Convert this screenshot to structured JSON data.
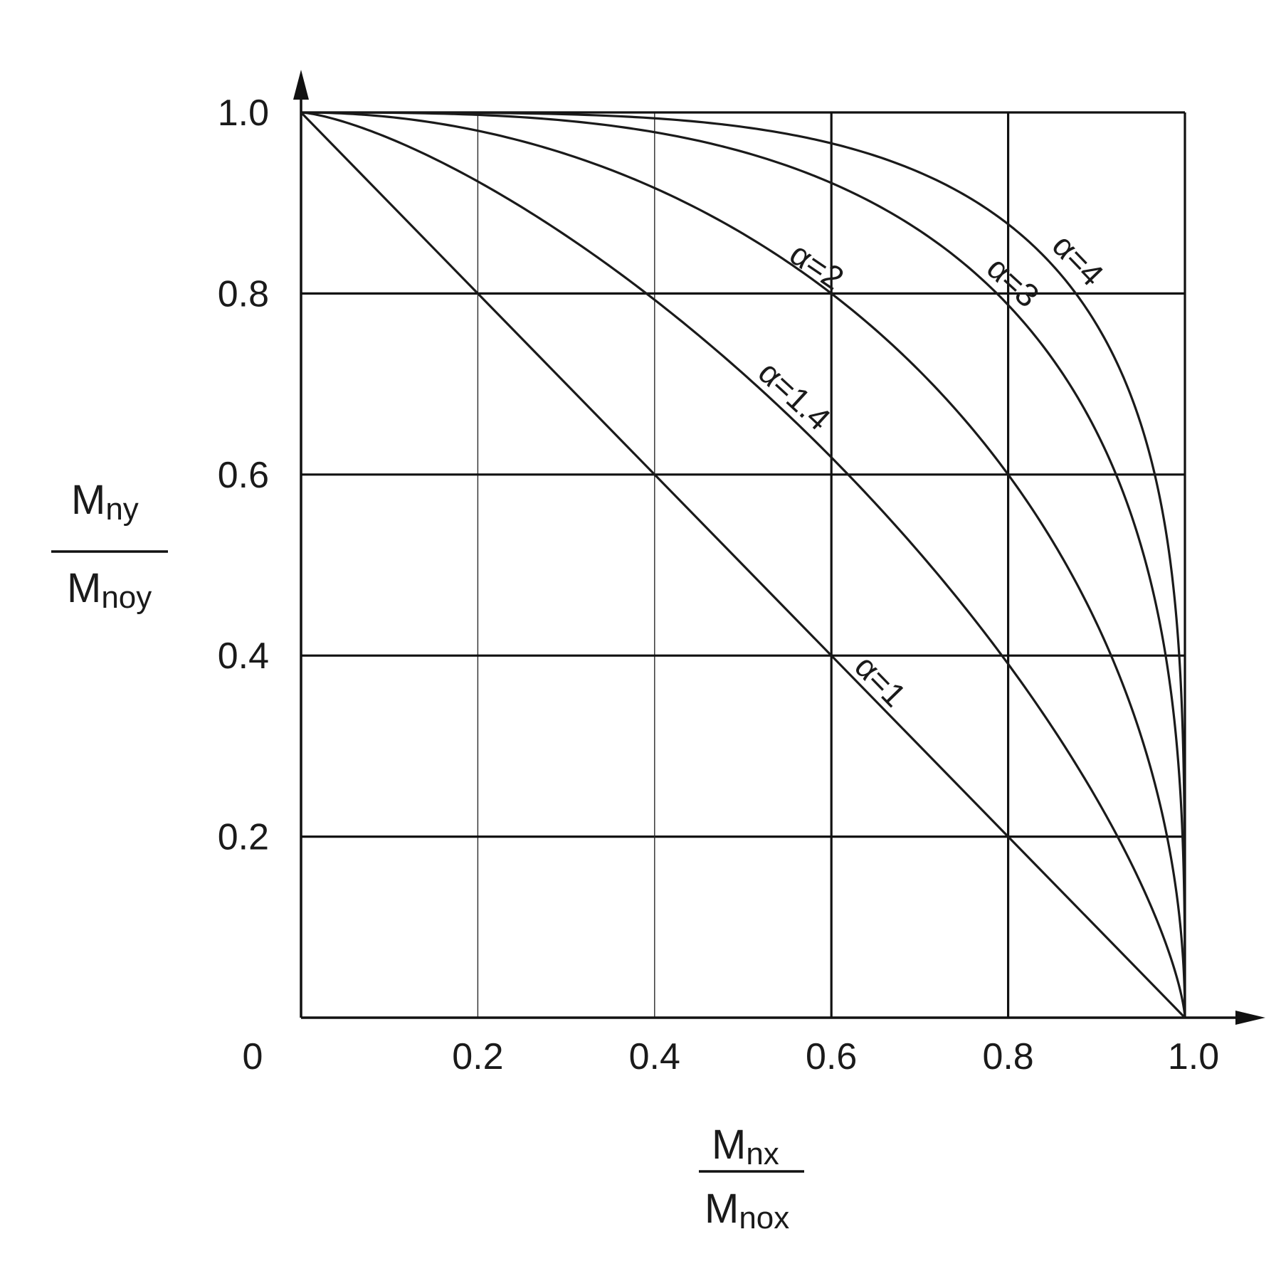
{
  "chart_data": {
    "type": "line",
    "xlim": [
      0,
      1
    ],
    "ylim": [
      0,
      1
    ],
    "x_ticks": [
      "0.2",
      "0.4",
      "0.6",
      "0.8",
      "1.0"
    ],
    "y_ticks": [
      "0.2",
      "0.4",
      "0.6",
      "0.8",
      "1.0"
    ],
    "origin_label": "0",
    "xlabel": {
      "numerator": "M",
      "numerator_sub": "nx",
      "denominator": "M",
      "denominator_sub": "nox"
    },
    "ylabel": {
      "numerator": "M",
      "numerator_sub": "ny",
      "denominator": "M",
      "denominator_sub": "noy"
    },
    "grid": true,
    "series": [
      {
        "name": "α=1",
        "alpha": 1,
        "x": [
          0,
          0.2,
          0.4,
          0.6,
          0.8,
          1.0
        ],
        "y": [
          1.0,
          0.8,
          0.6,
          0.4,
          0.2,
          0
        ]
      },
      {
        "name": "α=1.4",
        "alpha": 1.4,
        "x": [
          0,
          0.2,
          0.4,
          0.6,
          0.8,
          0.9,
          1.0
        ],
        "y": [
          1.0,
          0.92,
          0.8,
          0.64,
          0.4,
          0.24,
          0
        ]
      },
      {
        "name": "α=2",
        "alpha": 2,
        "x": [
          0,
          0.2,
          0.4,
          0.6,
          0.8,
          0.9,
          1.0
        ],
        "y": [
          1.0,
          0.98,
          0.92,
          0.8,
          0.6,
          0.44,
          0
        ]
      },
      {
        "name": "α=3",
        "alpha": 3,
        "x": [
          0,
          0.2,
          0.4,
          0.6,
          0.8,
          0.9,
          1.0
        ],
        "y": [
          1.0,
          0.99,
          0.96,
          0.89,
          0.72,
          0.56,
          0
        ]
      },
      {
        "name": "α=4",
        "alpha": 4,
        "x": [
          0,
          0.2,
          0.4,
          0.6,
          0.8,
          0.9,
          1.0
        ],
        "y": [
          1.0,
          1.0,
          0.99,
          0.96,
          0.86,
          0.72,
          0
        ]
      }
    ],
    "annotations": [
      {
        "text": "α=1",
        "series": "α=1"
      },
      {
        "text": "α=1.4",
        "series": "α=1.4"
      },
      {
        "text": "α=2",
        "series": "α=2"
      },
      {
        "text": "α=3",
        "series": "α=3"
      },
      {
        "text": "α=4",
        "series": "α=4"
      }
    ]
  }
}
